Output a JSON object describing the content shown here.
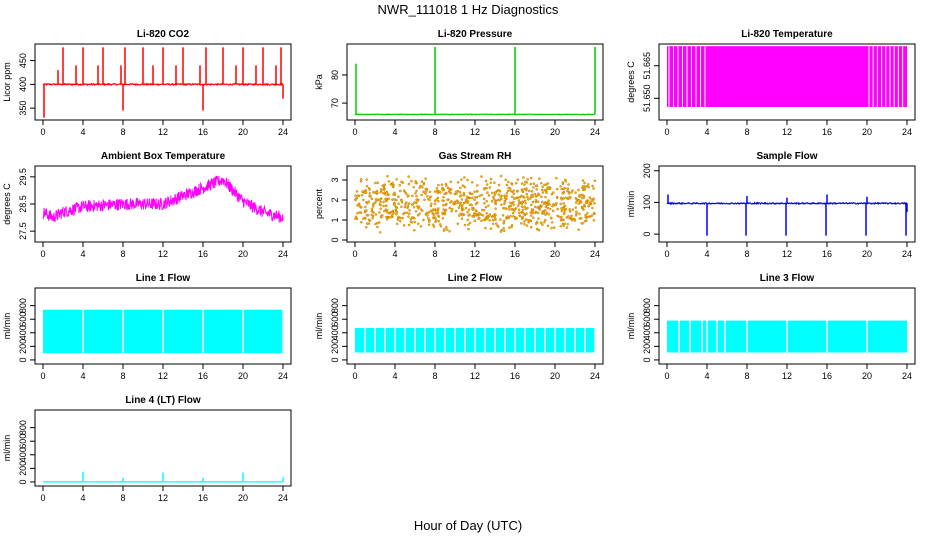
{
  "figure": {
    "title": "NWR_111018  1 Hz Diagnostics",
    "xlabel": "Hour of Day (UTC)"
  },
  "chart_data": [
    {
      "type": "line",
      "title": "Li-820 CO2",
      "ylabel": "Licor ppm",
      "color": "#ff0000",
      "xlim": [
        0,
        24
      ],
      "xticks": [
        0,
        4,
        8,
        12,
        16,
        20,
        24
      ],
      "ylim": [
        325,
        485
      ],
      "yticks": [
        350,
        400,
        450
      ],
      "series": [
        {
          "baseline": 400,
          "noise": 3,
          "spikes": [
            {
              "x": 0.1,
              "y": 330
            },
            {
              "x": 1.5,
              "y": 430
            },
            {
              "x": 2.0,
              "y": 478
            },
            {
              "x": 3.3,
              "y": 440
            },
            {
              "x": 4.0,
              "y": 478
            },
            {
              "x": 5.5,
              "y": 440
            },
            {
              "x": 6.0,
              "y": 478
            },
            {
              "x": 7.8,
              "y": 440
            },
            {
              "x": 8.0,
              "y": 345
            },
            {
              "x": 8.2,
              "y": 478
            },
            {
              "x": 10.0,
              "y": 478
            },
            {
              "x": 11.0,
              "y": 440
            },
            {
              "x": 12.0,
              "y": 478
            },
            {
              "x": 13.3,
              "y": 440
            },
            {
              "x": 14.0,
              "y": 478
            },
            {
              "x": 15.7,
              "y": 440
            },
            {
              "x": 16.0,
              "y": 345
            },
            {
              "x": 16.3,
              "y": 478
            },
            {
              "x": 18.0,
              "y": 478
            },
            {
              "x": 19.3,
              "y": 440
            },
            {
              "x": 20.0,
              "y": 478
            },
            {
              "x": 21.3,
              "y": 440
            },
            {
              "x": 22.0,
              "y": 478
            },
            {
              "x": 23.3,
              "y": 440
            },
            {
              "x": 23.8,
              "y": 478
            },
            {
              "x": 24.0,
              "y": 370
            }
          ]
        }
      ]
    },
    {
      "type": "line",
      "title": "Li-820 Pressure",
      "ylabel": "kPa",
      "color": "#00cc00",
      "xlim": [
        0,
        24
      ],
      "xticks": [
        0,
        4,
        8,
        12,
        16,
        20,
        24
      ],
      "ylim": [
        64,
        91
      ],
      "yticks": [
        70,
        80
      ],
      "series": [
        {
          "baseline": 66,
          "noise": 0.2,
          "spikes": [
            {
              "x": 0.1,
              "y": 84
            },
            {
              "x": 8.0,
              "y": 90
            },
            {
              "x": 16.0,
              "y": 90
            },
            {
              "x": 24.0,
              "y": 90
            }
          ]
        }
      ]
    },
    {
      "type": "area",
      "title": "Li-820 Temperature",
      "ylabel": "degrees C",
      "color": "#ff00ff",
      "xlim": [
        0,
        24
      ],
      "xticks": [
        0,
        4,
        8,
        12,
        16,
        20,
        24
      ],
      "ylim": [
        51.64,
        51.675
      ],
      "yticks": [
        51.65,
        51.665
      ],
      "ytick_labels": [
        "51.650",
        "51.665"
      ],
      "series": [
        {
          "fill_from": 0.0,
          "fill_to": 24.0,
          "low": 51.646,
          "high": 51.674
        }
      ]
    },
    {
      "type": "line",
      "title": "Ambient Box Temperature",
      "ylabel": "degrees C",
      "color": "#ff00ff",
      "xlim": [
        0,
        24
      ],
      "xticks": [
        0,
        4,
        8,
        12,
        16,
        20,
        24
      ],
      "ylim": [
        27.1,
        29.9
      ],
      "yticks": [
        27.5,
        28.5,
        29.5
      ],
      "series": [
        {
          "trend": [
            {
              "x": 0,
              "y": 28.2
            },
            {
              "x": 1,
              "y": 28.0
            },
            {
              "x": 2,
              "y": 28.2
            },
            {
              "x": 4,
              "y": 28.4
            },
            {
              "x": 8,
              "y": 28.5
            },
            {
              "x": 12,
              "y": 28.5
            },
            {
              "x": 14,
              "y": 28.8
            },
            {
              "x": 16,
              "y": 29.1
            },
            {
              "x": 18,
              "y": 29.4
            },
            {
              "x": 19,
              "y": 29.0
            },
            {
              "x": 20,
              "y": 28.6
            },
            {
              "x": 22,
              "y": 28.2
            },
            {
              "x": 24,
              "y": 28.0
            }
          ],
          "noise": 0.45
        }
      ]
    },
    {
      "type": "scatter",
      "title": "Gas Stream RH",
      "ylabel": "percent",
      "color": "#ffaa00",
      "edge_color": "#996600",
      "xlim": [
        0,
        24
      ],
      "xticks": [
        0,
        4,
        8,
        12,
        16,
        20,
        24
      ],
      "ylim": [
        -0.1,
        3.7
      ],
      "yticks": [
        0,
        1,
        2,
        3
      ],
      "series": [
        {
          "center": 1.8,
          "amplitude": 1.5
        }
      ]
    },
    {
      "type": "line",
      "title": "Sample Flow",
      "ylabel": "ml/min",
      "color": "#0000ff",
      "xlim": [
        0,
        24
      ],
      "xticks": [
        0,
        4,
        8,
        12,
        16,
        20,
        24
      ],
      "ylim": [
        -25,
        215
      ],
      "yticks": [
        0,
        100,
        200
      ],
      "series": [
        {
          "baseline": 97,
          "noise": 4,
          "spikes": [
            {
              "x": 0.1,
              "y": 125
            },
            {
              "x": 4.0,
              "y": -5
            },
            {
              "x": 7.9,
              "y": -5
            },
            {
              "x": 8.0,
              "y": 120
            },
            {
              "x": 11.9,
              "y": -5
            },
            {
              "x": 12.0,
              "y": 115
            },
            {
              "x": 15.9,
              "y": -5
            },
            {
              "x": 16.0,
              "y": 125
            },
            {
              "x": 19.9,
              "y": -5
            },
            {
              "x": 20.0,
              "y": 118
            },
            {
              "x": 23.9,
              "y": -5
            },
            {
              "x": 24.0,
              "y": 70
            }
          ]
        }
      ]
    },
    {
      "type": "area",
      "title": "Line 1 Flow",
      "ylabel": "ml/min",
      "color": "#00ffff",
      "xlim": [
        0,
        24
      ],
      "xticks": [
        0,
        4,
        8,
        12,
        16,
        20,
        24
      ],
      "ylim": [
        -60,
        1060
      ],
      "yticks": [
        0,
        200,
        400,
        600,
        800
      ],
      "series": [
        {
          "low": 100,
          "high": 740,
          "gaps": [
            4.0,
            8.0,
            12.0,
            16.0,
            20.0,
            24.0
          ],
          "start": 0.0,
          "end": 24.1
        }
      ]
    },
    {
      "type": "area",
      "title": "Line 2 Flow",
      "ylabel": "ml/min",
      "color": "#00ffff",
      "xlim": [
        0,
        24
      ],
      "xticks": [
        0,
        4,
        8,
        12,
        16,
        20,
        24
      ],
      "ylim": [
        -60,
        1060
      ],
      "yticks": [
        0,
        200,
        400,
        600,
        800
      ],
      "series": [
        {
          "low": 110,
          "high": 470,
          "gaps": [
            1,
            2,
            3,
            4,
            5,
            6,
            7,
            8,
            9,
            10,
            11,
            12,
            13,
            14,
            15,
            16,
            17,
            18,
            19,
            20,
            21,
            22,
            23,
            24
          ],
          "start": 0.0,
          "end": 24.0
        }
      ]
    },
    {
      "type": "area",
      "title": "Line 3 Flow",
      "ylabel": "ml/min",
      "color": "#00ffff",
      "xlim": [
        0,
        24
      ],
      "xticks": [
        0,
        4,
        8,
        12,
        16,
        20,
        24
      ],
      "ylim": [
        -60,
        1060
      ],
      "yticks": [
        0,
        200,
        400,
        600,
        800
      ],
      "series": [
        {
          "low": 110,
          "high": 580,
          "gaps": [
            1.2,
            2.3,
            3.5,
            4.0,
            5.0,
            5.8,
            8.0,
            12.0,
            16.0,
            20.0
          ],
          "start": 0.0,
          "end": 24.0
        }
      ]
    },
    {
      "type": "line",
      "title": "Line 4 (LT) Flow",
      "ylabel": "ml/min",
      "color": "#00ffff",
      "xlim": [
        0,
        24
      ],
      "xticks": [
        0,
        4,
        8,
        12,
        16,
        20,
        24
      ],
      "ylim": [
        -60,
        1060
      ],
      "yticks": [
        0,
        200,
        400,
        600,
        800
      ],
      "series": [
        {
          "baseline": 0,
          "spikes": [
            {
              "x": 4.0,
              "y": 150
            },
            {
              "x": 8.0,
              "y": 60
            },
            {
              "x": 12.0,
              "y": 140
            },
            {
              "x": 16.0,
              "y": 60
            },
            {
              "x": 20.0,
              "y": 140
            },
            {
              "x": 24.0,
              "y": 70
            }
          ]
        }
      ]
    }
  ]
}
